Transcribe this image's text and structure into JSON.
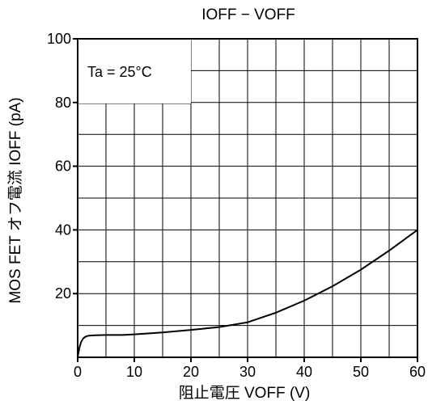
{
  "chart_data": {
    "type": "line",
    "title": "IOFF − VOFF",
    "xlabel": "阻止電圧 VOFF (V)",
    "ylabel": "MOS FET オフ電流 IOFF (pA)",
    "xlim": [
      0,
      60
    ],
    "ylim": [
      0,
      100
    ],
    "x_ticks": [
      "0",
      "10",
      "20",
      "30",
      "40",
      "50",
      "60"
    ],
    "y_ticks": [
      "20",
      "40",
      "60",
      "80",
      "100"
    ],
    "grid": true,
    "annotation": "Ta = 25°C",
    "series": [
      {
        "x": [
          0,
          0.3,
          0.6,
          1.0,
          1.5,
          2.0,
          3.0,
          5.0,
          8.0,
          10,
          15,
          20,
          25,
          30,
          35,
          40,
          45,
          50,
          55,
          60
        ],
        "y": [
          0,
          3.0,
          4.8,
          6.0,
          6.6,
          6.8,
          6.9,
          7.0,
          7.0,
          7.2,
          7.8,
          8.6,
          9.5,
          11.0,
          14.0,
          17.8,
          22.3,
          27.5,
          33.5,
          40.0
        ]
      }
    ]
  }
}
